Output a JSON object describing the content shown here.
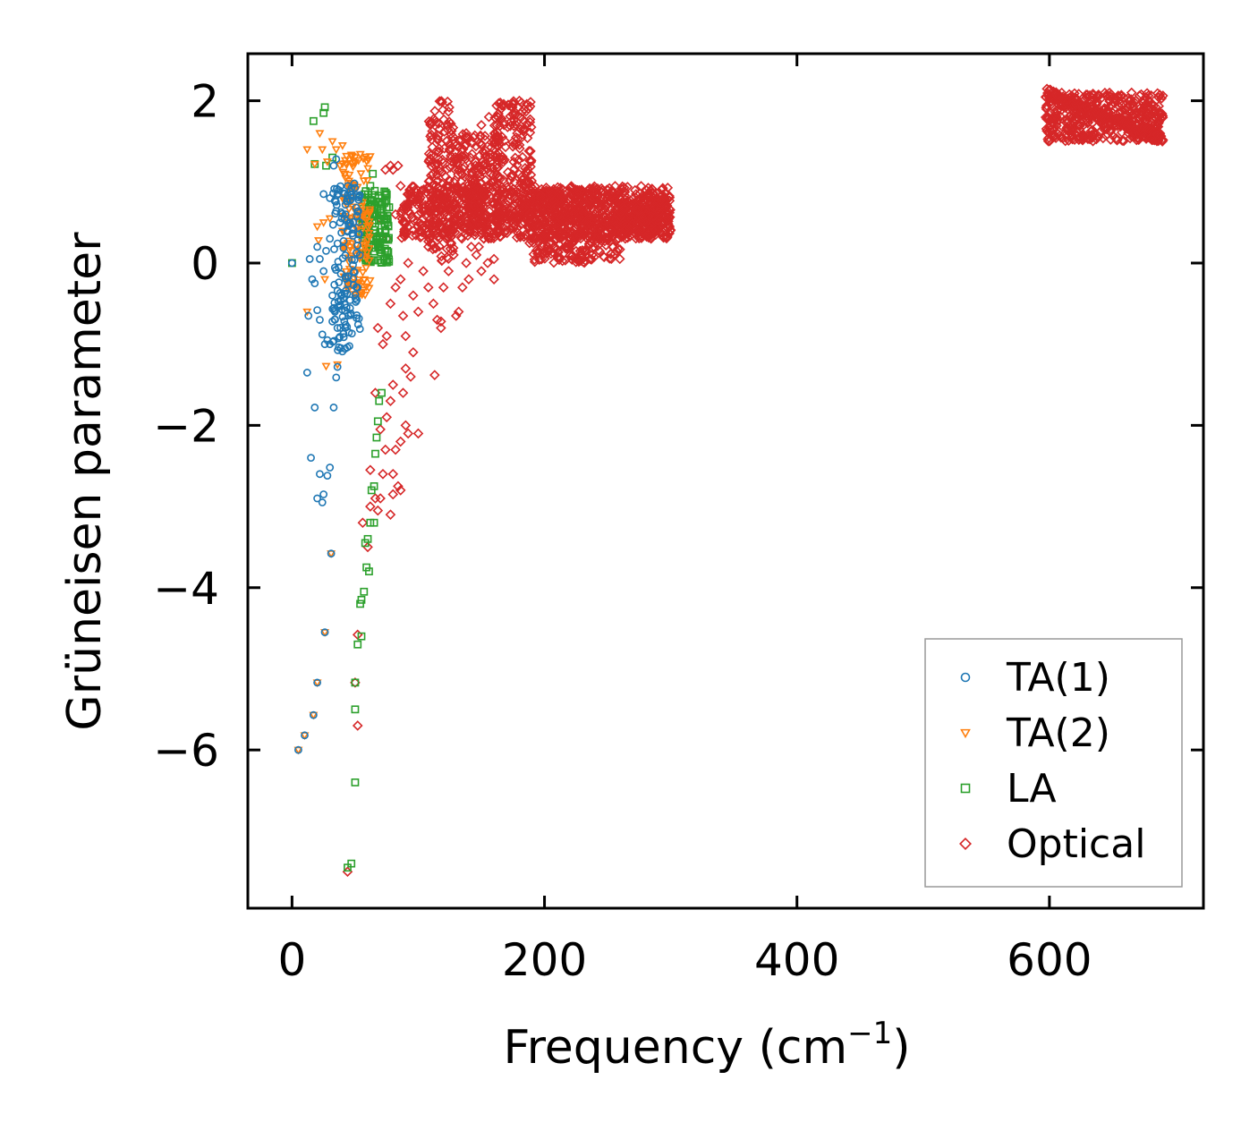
{
  "chart_data": {
    "type": "scatter",
    "title": "",
    "xlabel": "Frequency (cm",
    "xlabel_sup": "−1",
    "xlabel_close": ")",
    "ylabel": "Grüneisen parameter",
    "xlim": [
      -35,
      722
    ],
    "ylim": [
      -7.95,
      2.58
    ],
    "xticks": [
      0,
      200,
      400,
      600
    ],
    "xtick_labels": [
      "0",
      "200",
      "400",
      "600"
    ],
    "yticks": [
      2,
      0,
      -2,
      -4,
      -6
    ],
    "ytick_labels": [
      "2",
      "0",
      "−2",
      "−4",
      "−6"
    ],
    "legend_position": "lower-right",
    "grid": false,
    "series": [
      {
        "name": "TA(1)",
        "color": "#1f77b4",
        "marker": "circle",
        "points": [
          [
            0,
            0
          ],
          [
            5,
            -6.0
          ],
          [
            10,
            -5.82
          ],
          [
            13,
            -0.65
          ],
          [
            14,
            0.05
          ],
          [
            16,
            -0.2
          ],
          [
            17,
            -5.57
          ],
          [
            20,
            -5.17
          ],
          [
            15,
            -2.4
          ],
          [
            18,
            -1.78
          ],
          [
            20,
            -2.9
          ],
          [
            22,
            -2.6
          ],
          [
            24,
            -2.95
          ],
          [
            25,
            -2.85
          ],
          [
            28,
            -2.62
          ],
          [
            30,
            -2.52
          ],
          [
            26,
            -4.55
          ],
          [
            31,
            -3.58
          ],
          [
            33,
            -1.78
          ],
          [
            35,
            -1.41
          ],
          [
            36,
            -1.28
          ],
          [
            12,
            -1.35
          ],
          [
            18,
            -0.25
          ],
          [
            20,
            -0.58
          ],
          [
            22,
            -0.7
          ],
          [
            24,
            -0.88
          ],
          [
            26,
            -1.0
          ],
          [
            28,
            -0.95
          ],
          [
            30,
            -1.0
          ],
          [
            32,
            -0.72
          ],
          [
            20,
            0.2
          ],
          [
            22,
            0.05
          ],
          [
            25,
            -0.1
          ],
          [
            27,
            0.15
          ],
          [
            30,
            0.3
          ],
          [
            32,
            -0.4
          ],
          [
            34,
            -0.6
          ],
          [
            36,
            -0.8
          ],
          [
            25,
            0.85
          ],
          [
            30,
            0.8
          ],
          [
            33,
            1.2
          ],
          [
            35,
            1.28
          ],
          [
            37,
            0.9
          ],
          [
            38,
            0.5
          ]
        ],
        "dense_band": {
          "x_min": 32,
          "x_max": 54,
          "y_min": -1.1,
          "y_max": 1.0
        }
      },
      {
        "name": "TA(2)",
        "color": "#ff7f0e",
        "marker": "triangle-down",
        "points": [
          [
            5,
            -6.0
          ],
          [
            10,
            -5.82
          ],
          [
            17,
            -5.57
          ],
          [
            20,
            -5.17
          ],
          [
            26,
            -4.55
          ],
          [
            31,
            -3.58
          ],
          [
            12,
            1.4
          ],
          [
            18,
            1.22
          ],
          [
            22,
            1.6
          ],
          [
            24,
            1.4
          ],
          [
            28,
            1.25
          ],
          [
            32,
            1.5
          ],
          [
            35,
            1.4
          ],
          [
            40,
            1.45
          ],
          [
            20,
            0.45
          ],
          [
            25,
            0.5
          ],
          [
            30,
            0.55
          ],
          [
            21,
            0.28
          ],
          [
            12,
            -0.6
          ],
          [
            26,
            -0.2
          ],
          [
            36,
            -1.25
          ],
          [
            27,
            -1.27
          ],
          [
            38,
            1.2
          ],
          [
            42,
            1.1
          ]
        ],
        "dense_band": {
          "x_min": 40,
          "x_max": 62,
          "y_min": -0.4,
          "y_max": 1.35
        }
      },
      {
        "name": "LA",
        "color": "#2ca02c",
        "marker": "square",
        "points": [
          [
            0,
            0
          ],
          [
            17,
            1.75
          ],
          [
            25,
            1.85
          ],
          [
            26,
            1.92
          ],
          [
            27,
            1.2
          ],
          [
            18,
            1.22
          ],
          [
            32,
            1.3
          ],
          [
            44,
            -7.45
          ],
          [
            47,
            -7.4
          ],
          [
            50,
            -6.4
          ],
          [
            50,
            -5.5
          ],
          [
            50,
            -5.17
          ],
          [
            52,
            -4.7
          ],
          [
            55,
            -4.6
          ],
          [
            54,
            -4.2
          ],
          [
            55,
            -4.15
          ],
          [
            57,
            -4.05
          ],
          [
            59,
            -3.75
          ],
          [
            61,
            -3.8
          ],
          [
            58,
            -3.45
          ],
          [
            60,
            -3.4
          ],
          [
            62,
            -3.2
          ],
          [
            65,
            -3.2
          ],
          [
            63,
            -2.8
          ],
          [
            65,
            -2.75
          ],
          [
            66,
            -2.35
          ],
          [
            67,
            -2.15
          ],
          [
            68,
            -1.95
          ],
          [
            69,
            -1.7
          ],
          [
            71,
            -1.6
          ],
          [
            62,
            0.95
          ],
          [
            64,
            1.1
          ]
        ],
        "dense_band": {
          "x_min": 55,
          "x_max": 77,
          "y_min": 0.0,
          "y_max": 0.9
        }
      },
      {
        "name": "Optical",
        "color": "#d62728",
        "marker": "diamond",
        "points": [
          [
            44,
            -7.5
          ],
          [
            50,
            -5.17
          ],
          [
            52,
            -5.7
          ],
          [
            52,
            -4.58
          ],
          [
            56,
            -3.2
          ],
          [
            60,
            -3.5
          ],
          [
            62,
            -2.55
          ],
          [
            62,
            -3.0
          ],
          [
            66,
            -2.9
          ],
          [
            68,
            -3.05
          ],
          [
            70,
            -2.9
          ],
          [
            72,
            -2.6
          ],
          [
            74,
            -2.3
          ],
          [
            70,
            -2.05
          ],
          [
            66,
            -1.6
          ],
          [
            75,
            -1.9
          ],
          [
            78,
            -1.7
          ],
          [
            80,
            -1.5
          ],
          [
            80,
            -2.6
          ],
          [
            82,
            -2.3
          ],
          [
            84,
            -2.75
          ],
          [
            86,
            -2.8
          ],
          [
            88,
            -1.6
          ],
          [
            90,
            -1.3
          ],
          [
            78,
            -3.1
          ],
          [
            80,
            -2.85
          ],
          [
            86,
            -2.2
          ],
          [
            90,
            -2.0
          ],
          [
            92,
            -2.1
          ],
          [
            94,
            -1.4
          ],
          [
            96,
            -1.1
          ],
          [
            100,
            -2.1
          ],
          [
            68,
            -0.8
          ],
          [
            72,
            -1.0
          ],
          [
            75,
            -0.9
          ],
          [
            78,
            -0.5
          ],
          [
            82,
            -0.3
          ],
          [
            86,
            -0.2
          ],
          [
            88,
            -0.65
          ],
          [
            90,
            -0.9
          ],
          [
            92,
            0.0
          ],
          [
            96,
            -0.4
          ],
          [
            100,
            -0.6
          ],
          [
            104,
            -0.1
          ],
          [
            108,
            -0.3
          ],
          [
            112,
            -0.5
          ],
          [
            115,
            -0.7
          ],
          [
            118,
            -0.8
          ],
          [
            120,
            -0.3
          ],
          [
            124,
            -0.1
          ],
          [
            128,
            0.1
          ],
          [
            130,
            -0.65
          ],
          [
            132,
            -0.6
          ],
          [
            135,
            -0.3
          ],
          [
            138,
            0.0
          ],
          [
            140,
            -0.2
          ],
          [
            142,
            0.2
          ],
          [
            146,
            0.1
          ],
          [
            150,
            -0.1
          ],
          [
            155,
            0.0
          ],
          [
            160,
            0.05
          ],
          [
            160,
            -0.2
          ],
          [
            113,
            -1.38
          ],
          [
            118,
            -0.72
          ],
          [
            74,
            1.15
          ],
          [
            78,
            1.2
          ],
          [
            80,
            1.15
          ],
          [
            84,
            1.2
          ],
          [
            70,
            0.55
          ],
          [
            75,
            0.3
          ],
          [
            82,
            0.6
          ],
          [
            86,
            0.95
          ],
          [
            90,
            0.35
          ],
          [
            94,
            0.85
          ],
          [
            100,
            0.6
          ],
          [
            104,
            0.9
          ],
          [
            108,
            0.2
          ],
          [
            122,
            0.4
          ],
          [
            126,
            0.25
          ],
          [
            134,
            0.45
          ],
          [
            144,
            0.55
          ],
          [
            148,
            0.2
          ],
          [
            152,
            0.3
          ],
          [
            130,
            1.45
          ],
          [
            138,
            1.6
          ],
          [
            150,
            1.7
          ],
          [
            156,
            1.8
          ]
        ],
        "bands": [
          {
            "x_min": 86,
            "x_max": 300,
            "y_min": 0.3,
            "y_max": 0.95
          },
          {
            "x_min": 108,
            "x_max": 128,
            "y_min": 0.0,
            "y_max": 2.0
          },
          {
            "x_min": 160,
            "x_max": 190,
            "y_min": 0.5,
            "y_max": 2.0
          },
          {
            "x_min": 128,
            "x_max": 165,
            "y_min": 0.4,
            "y_max": 1.6
          },
          {
            "x_min": 188,
            "x_max": 260,
            "y_min": 0.0,
            "y_max": 0.9
          },
          {
            "x_min": 260,
            "x_max": 300,
            "y_min": 0.3,
            "y_max": 0.8
          },
          {
            "x_min": 597,
            "x_max": 690,
            "y_min": 1.5,
            "y_max": 2.1
          }
        ],
        "high_branch": {
          "x_start": 597,
          "y_start": 2.1,
          "x_end": 690,
          "y_end": 1.52
        }
      }
    ]
  }
}
